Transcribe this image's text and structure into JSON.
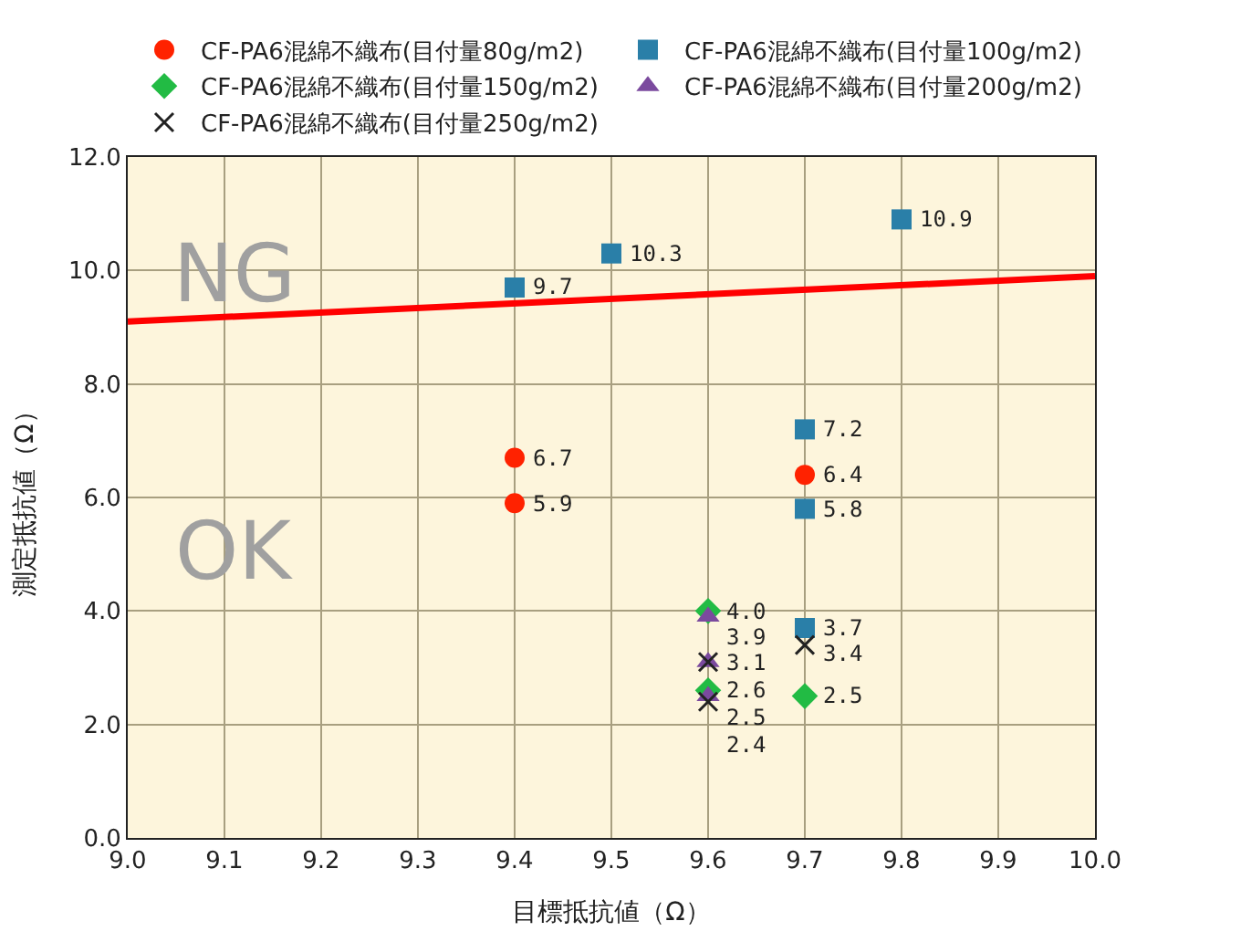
{
  "chart_data": {
    "type": "scatter",
    "xlabel": "目標抵抗値（Ω）",
    "ylabel": "測定抵抗値（Ω）",
    "xlim": [
      9.0,
      10.0
    ],
    "xticks": [
      {
        "value": 9.0,
        "label": "9.0"
      },
      {
        "value": 9.1,
        "label": "9.1"
      },
      {
        "value": 9.2,
        "label": "9.2"
      },
      {
        "value": 9.3,
        "label": "9.3"
      },
      {
        "value": 9.4,
        "label": "9.4"
      },
      {
        "value": 9.5,
        "label": "9.5"
      },
      {
        "value": 9.6,
        "label": "9.6"
      },
      {
        "value": 9.7,
        "label": "9.7"
      },
      {
        "value": 9.8,
        "label": "9.8"
      },
      {
        "value": 9.9,
        "label": "9.9"
      },
      {
        "value": 10.0,
        "label": "10.0"
      }
    ],
    "ylim": [
      0,
      12
    ],
    "yticks": [
      {
        "value": 0,
        "label": "0.0"
      },
      {
        "value": 2,
        "label": "2.0"
      },
      {
        "value": 4,
        "label": "4.0"
      },
      {
        "value": 6,
        "label": "6.0"
      },
      {
        "value": 8,
        "label": "8.0"
      },
      {
        "value": 10,
        "label": "10.0"
      },
      {
        "value": 12,
        "label": "12.0"
      }
    ],
    "grid": true,
    "legend": "top",
    "series": [
      {
        "name": "CF-PA6混綿不織布(目付量80g/m2)",
        "color": "#ff2200",
        "marker": "circle",
        "x": [
          9.4,
          9.4,
          9.7
        ],
        "values": [
          6.7,
          5.9,
          6.4
        ],
        "value_labels": [
          "6.7",
          "5.9",
          "6.4"
        ]
      },
      {
        "name": "CF-PA6混綿不織布(目付量100g/m2)",
        "color": "#2a7fa8",
        "marker": "square",
        "x": [
          9.4,
          9.5,
          9.8,
          9.7,
          9.7,
          9.7
        ],
        "values": [
          9.7,
          10.3,
          10.9,
          7.2,
          5.8,
          3.7
        ],
        "value_labels": [
          "9.7",
          "10.3",
          "10.9",
          "7.2",
          "5.8",
          "3.7"
        ]
      },
      {
        "name": "CF-PA6混綿不織布(目付量150g/m2)",
        "color": "#22bb44",
        "marker": "diamond",
        "x": [
          9.6,
          9.6,
          9.7
        ],
        "values": [
          4.0,
          2.6,
          2.5
        ],
        "value_labels": [
          "4.0",
          "2.6",
          "2.5"
        ]
      },
      {
        "name": "CF-PA6混綿不織布(目付量200g/m2)",
        "color": "#7b4a9e",
        "marker": "triangle",
        "x": [
          9.6,
          9.6,
          9.6
        ],
        "values": [
          3.9,
          3.1,
          2.5
        ],
        "value_labels": [
          "3.9",
          null,
          "2.5"
        ]
      },
      {
        "name": "CF-PA6混綿不織布(目付量250g/m2)",
        "color": "#222222",
        "marker": "cross",
        "x": [
          9.6,
          9.6,
          9.7
        ],
        "values": [
          3.1,
          2.4,
          3.4
        ],
        "value_labels": [
          "3.1",
          "2.4",
          "3.4"
        ]
      },
      {
        "type": "line",
        "color": "#ff0000",
        "x": [
          9.0,
          10.0
        ],
        "values": [
          9.1,
          9.9
        ]
      }
    ],
    "annotations": [
      "NG",
      "OK"
    ]
  }
}
